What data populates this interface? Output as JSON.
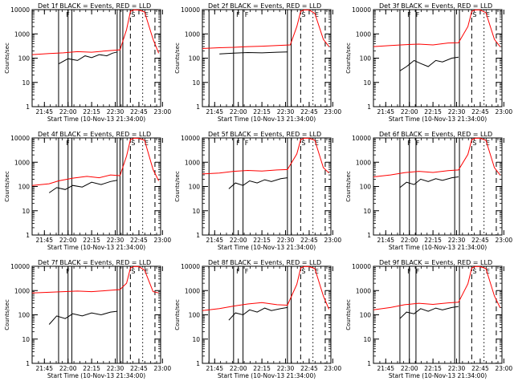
{
  "colors": {
    "events": "#000000",
    "lld": "#ff0000",
    "axis": "#000000",
    "background": "#ffffff"
  },
  "chart_data": [
    {
      "type": "line",
      "title": "Det 1f BLACK = Events, RED = LLD",
      "xlabel": "Start Time (10-Nov-13 21:34:00)",
      "ylabel": "Counts/sec",
      "y_scale": "log",
      "ylim": [
        1,
        10000
      ],
      "x_tick_labels": [
        "21:45",
        "22:00",
        "22:15",
        "22:30",
        "22:45",
        "23:00"
      ],
      "y_tick_labels": [
        "1",
        "10",
        "100",
        "1000",
        "10000"
      ],
      "annotations": [
        "F",
        "S",
        "E"
      ],
      "series": [
        {
          "color": "#000000",
          "x": [
            21.9,
            22.0,
            22.1,
            22.18,
            22.25,
            22.33,
            22.41,
            22.47,
            22.52
          ],
          "values": [
            58,
            95,
            80,
            125,
            105,
            140,
            125,
            160,
            180
          ]
        },
        {
          "color": "#ff0000",
          "x": [
            21.62,
            21.8,
            21.95,
            22.1,
            22.25,
            22.41,
            22.55,
            22.62,
            22.66,
            22.7,
            22.75,
            22.81,
            22.9,
            22.96
          ],
          "values": [
            140,
            155,
            165,
            185,
            175,
            200,
            220,
            1500,
            8500,
            9800,
            9600,
            8000,
            600,
            160
          ]
        }
      ],
      "vlines": [
        {
          "style": "solid",
          "x": [
            21.9,
            22.0,
            22.04,
            22.52,
            22.55,
            22.58
          ]
        },
        {
          "style": "dashed",
          "x": [
            22.66,
            22.92
          ]
        },
        {
          "style": "dotted",
          "x": [
            22.79
          ]
        }
      ]
    },
    {
      "type": "line",
      "title": "Det 2f BLACK = Events, RED = LLD",
      "xlabel": "Start Time (10-Nov-13 21:34:00)",
      "ylabel": "Counts/sec",
      "y_scale": "log",
      "ylim": [
        1,
        10000
      ],
      "x_tick_labels": [
        "21:45",
        "22:00",
        "22:15",
        "22:30",
        "22:45",
        "23:00"
      ],
      "y_tick_labels": [
        "1",
        "10",
        "100",
        "1000",
        "10000"
      ],
      "annotations": [
        "F",
        "F",
        "S",
        "E"
      ],
      "series": [
        {
          "color": "#000000",
          "x": [
            21.8,
            21.95,
            22.1,
            22.25,
            22.41,
            22.52
          ],
          "values": [
            150,
            160,
            170,
            165,
            175,
            180
          ]
        },
        {
          "color": "#ff0000",
          "x": [
            21.62,
            21.8,
            21.95,
            22.1,
            22.25,
            22.41,
            22.55,
            22.62,
            22.66,
            22.7,
            22.75,
            22.81,
            22.9,
            22.96
          ],
          "values": [
            250,
            270,
            280,
            300,
            310,
            330,
            350,
            2000,
            8500,
            9800,
            9700,
            7000,
            600,
            300
          ]
        }
      ],
      "vlines": [
        {
          "style": "solid",
          "x": [
            21.69,
            21.95,
            22.05,
            22.52,
            22.56
          ]
        },
        {
          "style": "dashed",
          "x": [
            22.66,
            22.92
          ]
        },
        {
          "style": "dotted",
          "x": [
            22.79
          ]
        }
      ]
    },
    {
      "type": "line",
      "title": "Det 3f BLACK = Events, RED = LLD",
      "xlabel": "Start Time (10-Nov-13 21:34:00)",
      "ylabel": "Counts/sec",
      "y_scale": "log",
      "ylim": [
        1,
        10000
      ],
      "x_tick_labels": [
        "21:45",
        "22:00",
        "22:15",
        "22:30",
        "22:45",
        "23:00"
      ],
      "y_tick_labels": [
        "1",
        "10",
        "100",
        "1000",
        "10000"
      ],
      "annotations": [
        "F",
        "F",
        "S",
        "E"
      ],
      "series": [
        {
          "color": "#000000",
          "x": [
            21.9,
            21.97,
            22.05,
            22.12,
            22.2,
            22.28,
            22.35,
            22.45,
            22.52
          ],
          "values": [
            30,
            45,
            80,
            60,
            45,
            80,
            70,
            100,
            110
          ]
        },
        {
          "color": "#ff0000",
          "x": [
            21.62,
            21.8,
            21.95,
            22.1,
            22.25,
            22.41,
            22.52,
            22.62,
            22.66,
            22.7,
            22.75,
            22.81,
            22.9,
            22.96
          ],
          "values": [
            300,
            330,
            360,
            380,
            350,
            420,
            430,
            2000,
            8500,
            9800,
            9700,
            7500,
            600,
            300
          ]
        }
      ],
      "vlines": [
        {
          "style": "solid",
          "x": [
            21.9,
            22.0,
            22.07,
            22.48,
            22.53
          ]
        },
        {
          "style": "dashed",
          "x": [
            22.66,
            22.92
          ]
        },
        {
          "style": "dotted",
          "x": [
            22.79
          ]
        }
      ]
    },
    {
      "type": "line",
      "title": "Det 4f BLACK = Events, RED = LLD",
      "xlabel": "Start Time (10-Nov-13 21:34:00)",
      "ylabel": "Counts/sec",
      "y_scale": "log",
      "ylim": [
        1,
        10000
      ],
      "x_tick_labels": [
        "21:45",
        "22:00",
        "22:15",
        "22:30",
        "22:45",
        "23:00"
      ],
      "y_tick_labels": [
        "1",
        "10",
        "100",
        "1000",
        "10000"
      ],
      "annotations": [
        "F",
        "S",
        "E"
      ],
      "series": [
        {
          "color": "#000000",
          "x": [
            21.8,
            21.88,
            21.97,
            22.05,
            22.15,
            22.25,
            22.35,
            22.45,
            22.52
          ],
          "values": [
            55,
            90,
            75,
            110,
            95,
            150,
            120,
            160,
            180
          ]
        },
        {
          "color": "#ff0000",
          "x": [
            21.62,
            21.8,
            21.9,
            22.05,
            22.2,
            22.33,
            22.45,
            22.55,
            22.62,
            22.66,
            22.7,
            22.75,
            22.81,
            22.9,
            22.96
          ],
          "values": [
            110,
            130,
            170,
            220,
            260,
            230,
            300,
            280,
            1800,
            8500,
            9800,
            9600,
            8000,
            500,
            170
          ]
        }
      ],
      "vlines": [
        {
          "style": "solid",
          "x": [
            21.9,
            22.0,
            22.04,
            22.52,
            22.55,
            22.58
          ]
        },
        {
          "style": "dashed",
          "x": [
            22.66,
            22.92
          ]
        },
        {
          "style": "dotted",
          "x": [
            22.79
          ]
        }
      ]
    },
    {
      "type": "line",
      "title": "Det 5f BLACK = Events, RED = LLD",
      "xlabel": "Start Time (10-Nov-13 21:34:00)",
      "ylabel": "Counts/sec",
      "y_scale": "log",
      "ylim": [
        1,
        10000
      ],
      "x_tick_labels": [
        "21:45",
        "22:00",
        "22:15",
        "22:30",
        "22:45",
        "23:00"
      ],
      "y_tick_labels": [
        "1",
        "10",
        "100",
        "1000",
        "10000"
      ],
      "annotations": [
        "F",
        "F",
        "S",
        "E"
      ],
      "series": [
        {
          "color": "#000000",
          "x": [
            21.9,
            21.97,
            22.05,
            22.12,
            22.2,
            22.28,
            22.35,
            22.45,
            22.52
          ],
          "values": [
            80,
            140,
            110,
            170,
            140,
            190,
            160,
            210,
            230
          ]
        },
        {
          "color": "#ff0000",
          "x": [
            21.62,
            21.8,
            21.95,
            22.1,
            22.25,
            22.41,
            22.52,
            22.62,
            22.66,
            22.7,
            22.75,
            22.81,
            22.9,
            22.96
          ],
          "values": [
            330,
            360,
            420,
            460,
            430,
            480,
            500,
            2200,
            8500,
            9800,
            9700,
            8000,
            600,
            360
          ]
        }
      ],
      "vlines": [
        {
          "style": "solid",
          "x": [
            21.69,
            21.95,
            22.05,
            22.52,
            22.56
          ]
        },
        {
          "style": "dashed",
          "x": [
            22.66,
            22.92
          ]
        },
        {
          "style": "dotted",
          "x": [
            22.79
          ]
        }
      ]
    },
    {
      "type": "line",
      "title": "Det 6f BLACK = Events, RED = LLD",
      "xlabel": "Start Time (10-Nov-13 21:34:00)",
      "ylabel": "Counts/sec",
      "y_scale": "log",
      "ylim": [
        1,
        10000
      ],
      "x_tick_labels": [
        "21:45",
        "22:00",
        "22:15",
        "22:30",
        "22:45",
        "23:00"
      ],
      "y_tick_labels": [
        "1",
        "10",
        "100",
        "1000",
        "10000"
      ],
      "annotations": [
        "F",
        "F",
        "S",
        "E"
      ],
      "series": [
        {
          "color": "#000000",
          "x": [
            21.9,
            21.97,
            22.05,
            22.12,
            22.2,
            22.28,
            22.35,
            22.45,
            22.52
          ],
          "values": [
            90,
            150,
            120,
            200,
            160,
            210,
            180,
            230,
            250
          ]
        },
        {
          "color": "#ff0000",
          "x": [
            21.62,
            21.8,
            21.95,
            22.1,
            22.25,
            22.41,
            22.52,
            22.62,
            22.66,
            22.7,
            22.75,
            22.81,
            22.9,
            22.96
          ],
          "values": [
            250,
            300,
            370,
            420,
            380,
            450,
            480,
            2100,
            8500,
            9800,
            9700,
            8000,
            600,
            300
          ]
        }
      ],
      "vlines": [
        {
          "style": "solid",
          "x": [
            21.9,
            22.0,
            22.07,
            22.48,
            22.53
          ]
        },
        {
          "style": "dashed",
          "x": [
            22.66,
            22.92
          ]
        },
        {
          "style": "dotted",
          "x": [
            22.79
          ]
        }
      ]
    },
    {
      "type": "line",
      "title": "Det 7f BLACK = Events, RED = LLD",
      "xlabel": "Start Time (10-Nov-13 21:34:00)",
      "ylabel": "Counts/sec",
      "y_scale": "log",
      "ylim": [
        1,
        10000
      ],
      "x_tick_labels": [
        "21:45",
        "22:00",
        "22:15",
        "22:30",
        "22:45",
        "23:00"
      ],
      "y_tick_labels": [
        "1",
        "10",
        "100",
        "1000",
        "10000"
      ],
      "annotations": [
        "F",
        "S",
        "E"
      ],
      "series": [
        {
          "color": "#000000",
          "x": [
            21.8,
            21.88,
            21.97,
            22.05,
            22.15,
            22.25,
            22.35,
            22.45,
            22.52
          ],
          "values": [
            40,
            90,
            70,
            110,
            90,
            120,
            100,
            130,
            140
          ]
        },
        {
          "color": "#ff0000",
          "x": [
            21.62,
            21.8,
            21.95,
            22.1,
            22.25,
            22.41,
            22.55,
            22.62,
            22.66,
            22.7,
            22.75,
            22.81,
            22.9,
            22.96
          ],
          "values": [
            800,
            850,
            900,
            950,
            900,
            1000,
            1100,
            2000,
            8500,
            9800,
            9700,
            7000,
            900,
            800
          ]
        }
      ],
      "vlines": [
        {
          "style": "solid",
          "x": [
            21.9,
            22.0,
            22.04,
            22.52,
            22.55,
            22.58
          ]
        },
        {
          "style": "dashed",
          "x": [
            22.66,
            22.92
          ]
        },
        {
          "style": "dotted",
          "x": [
            22.79
          ]
        }
      ]
    },
    {
      "type": "line",
      "title": "Det 8f BLACK = Events, RED = LLD",
      "xlabel": "Start Time (10-Nov-13 21:34:00)",
      "ylabel": "Counts/sec",
      "y_scale": "log",
      "ylim": [
        1,
        10000
      ],
      "x_tick_labels": [
        "21:45",
        "22:00",
        "22:15",
        "22:30",
        "22:45",
        "23:00"
      ],
      "y_tick_labels": [
        "1",
        "10",
        "100",
        "1000",
        "10000"
      ],
      "annotations": [
        "F",
        "F",
        "S",
        "E"
      ],
      "series": [
        {
          "color": "#000000",
          "x": [
            21.9,
            21.97,
            22.05,
            22.12,
            22.2,
            22.28,
            22.35,
            22.45,
            22.52
          ],
          "values": [
            60,
            120,
            100,
            160,
            130,
            190,
            150,
            180,
            200
          ]
        },
        {
          "color": "#ff0000",
          "x": [
            21.62,
            21.8,
            21.95,
            22.1,
            22.25,
            22.41,
            22.52,
            22.62,
            22.66,
            22.7,
            22.75,
            22.81,
            22.9,
            22.96
          ],
          "values": [
            150,
            180,
            230,
            280,
            320,
            260,
            250,
            1800,
            8500,
            9800,
            9700,
            8000,
            600,
            170
          ]
        }
      ],
      "vlines": [
        {
          "style": "solid",
          "x": [
            21.69,
            21.95,
            22.05,
            22.52,
            22.56
          ]
        },
        {
          "style": "dashed",
          "x": [
            22.66,
            22.92
          ]
        },
        {
          "style": "dotted",
          "x": [
            22.79
          ]
        }
      ]
    },
    {
      "type": "line",
      "title": "Det 9f BLACK = Events, RED = LLD",
      "xlabel": "Start Time (10-Nov-13 21:34:00)",
      "ylabel": "Counts/sec",
      "y_scale": "log",
      "ylim": [
        1,
        10000
      ],
      "x_tick_labels": [
        "21:45",
        "22:00",
        "22:15",
        "22:30",
        "22:45",
        "23:00"
      ],
      "y_tick_labels": [
        "1",
        "10",
        "100",
        "1000",
        "10000"
      ],
      "annotations": [
        "F",
        "F",
        "S",
        "E"
      ],
      "series": [
        {
          "color": "#000000",
          "x": [
            21.9,
            21.97,
            22.05,
            22.12,
            22.2,
            22.28,
            22.35,
            22.45,
            22.52
          ],
          "values": [
            70,
            130,
            110,
            180,
            140,
            190,
            160,
            200,
            220
          ]
        },
        {
          "color": "#ff0000",
          "x": [
            21.62,
            21.8,
            21.95,
            22.1,
            22.25,
            22.41,
            22.52,
            22.62,
            22.66,
            22.7,
            22.75,
            22.81,
            22.9,
            22.96
          ],
          "values": [
            160,
            200,
            260,
            300,
            270,
            310,
            330,
            1900,
            8500,
            9800,
            9700,
            8000,
            600,
            200
          ]
        }
      ],
      "vlines": [
        {
          "style": "solid",
          "x": [
            21.9,
            22.0,
            22.07,
            22.48,
            22.53
          ]
        },
        {
          "style": "dashed",
          "x": [
            22.66,
            22.92
          ]
        },
        {
          "style": "dotted",
          "x": [
            22.79
          ]
        }
      ]
    }
  ]
}
